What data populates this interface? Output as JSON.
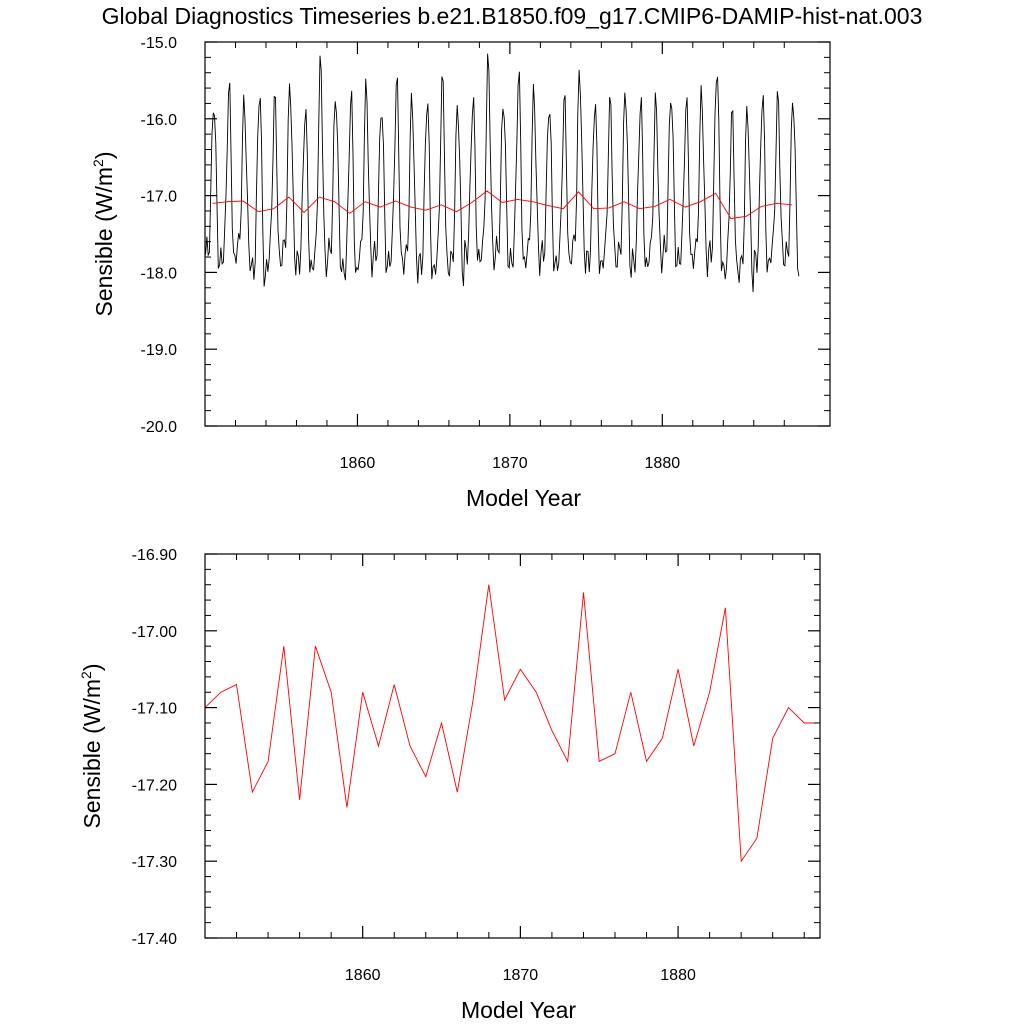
{
  "title": "Global Diagnostics Timeseries b.e21.B1850.f09_g17.CMIP6-DAMIP-hist-nat.003",
  "colors": {
    "monthly": "#000000",
    "annual": "#ff0000",
    "axis": "#000000"
  },
  "chart_data": [
    {
      "type": "line",
      "xlabel": "Model Year",
      "ylabel_main": "Sensible (W/m",
      "ylabel_sup": "2",
      "ylabel_close": ")",
      "xlim": [
        1850,
        1891
      ],
      "ylim": [
        -20.0,
        -15.0
      ],
      "xticks": [
        1860,
        1870,
        1880
      ],
      "xtick_labels": [
        "1860",
        "1870",
        "1880"
      ],
      "yticks": [
        -20.0,
        -19.0,
        -18.0,
        -17.0,
        -16.0,
        -15.0
      ],
      "ytick_labels": [
        "-20.0",
        "-19.0",
        "-18.0",
        "-17.0",
        "-16.0",
        "-15.0"
      ],
      "grid": false,
      "legend": "none",
      "series": [
        {
          "color": "#000000",
          "monthly_annual_means": [
            -17.1,
            -17.08,
            -17.07,
            -17.21,
            -17.17,
            -17.02,
            -17.22,
            -17.02,
            -17.08,
            -17.23,
            -17.08,
            -17.15,
            -17.07,
            -17.15,
            -17.19,
            -17.12,
            -17.21,
            -17.09,
            -16.94,
            -17.09,
            -17.05,
            -17.08,
            -17.13,
            -17.17,
            -16.95,
            -17.17,
            -17.16,
            -17.08,
            -17.17,
            -17.14,
            -17.05,
            -17.15,
            -17.08,
            -16.97,
            -17.3,
            -17.27,
            -17.14,
            -17.1,
            -17.12
          ],
          "monthly_amplitudes": [
            1.05,
            1.15,
            1.0,
            1.25,
            1.1,
            1.15,
            1.05,
            1.35,
            1.1,
            1.2,
            1.15,
            1.05,
            1.2,
            1.1,
            1.15,
            1.25,
            1.1,
            1.05,
            1.3,
            1.05,
            1.25,
            1.1,
            1.05,
            1.1,
            1.2,
            1.1,
            1.05,
            1.15,
            1.1,
            1.05,
            1.1,
            1.05,
            1.1,
            1.3,
            1.05,
            1.1,
            1.15,
            1.05,
            1.1
          ]
        },
        {
          "color": "#ff0000",
          "x": [
            1850.5,
            1851.5,
            1852.5,
            1853.5,
            1854.5,
            1855.5,
            1856.5,
            1857.5,
            1858.5,
            1859.5,
            1860.5,
            1861.5,
            1862.5,
            1863.5,
            1864.5,
            1865.5,
            1866.5,
            1867.5,
            1868.5,
            1869.5,
            1870.5,
            1871.5,
            1872.5,
            1873.5,
            1874.5,
            1875.5,
            1876.5,
            1877.5,
            1878.5,
            1879.5,
            1880.5,
            1881.5,
            1882.5,
            1883.5,
            1884.5,
            1885.5,
            1886.5,
            1887.5,
            1888.5
          ],
          "y": [
            -17.1,
            -17.08,
            -17.07,
            -17.21,
            -17.17,
            -17.02,
            -17.22,
            -17.02,
            -17.08,
            -17.23,
            -17.08,
            -17.15,
            -17.07,
            -17.15,
            -17.19,
            -17.12,
            -17.21,
            -17.09,
            -16.94,
            -17.09,
            -17.05,
            -17.08,
            -17.13,
            -17.17,
            -16.95,
            -17.17,
            -17.16,
            -17.08,
            -17.17,
            -17.14,
            -17.05,
            -17.15,
            -17.08,
            -16.97,
            -17.3,
            -17.27,
            -17.14,
            -17.1,
            -17.12
          ]
        }
      ]
    },
    {
      "type": "line",
      "xlabel": "Model Year",
      "ylabel_main": "Sensible (W/m",
      "ylabel_sup": "2",
      "ylabel_close": ")",
      "xlim": [
        1850,
        1889
      ],
      "ylim": [
        -17.4,
        -16.9
      ],
      "xticks": [
        1860,
        1870,
        1880
      ],
      "xtick_labels": [
        "1860",
        "1870",
        "1880"
      ],
      "yticks": [
        -17.4,
        -17.3,
        -17.2,
        -17.1,
        -17.0,
        -16.9
      ],
      "ytick_labels": [
        "-17.40",
        "-17.30",
        "-17.20",
        "-17.10",
        "-17.00",
        "-16.90"
      ],
      "grid": false,
      "legend": "none",
      "series": [
        {
          "color": "#ff0000",
          "x": [
            1850.0,
            1851.0,
            1852.0,
            1853.0,
            1854.0,
            1855.0,
            1856.0,
            1857.0,
            1858.0,
            1859.0,
            1860.0,
            1861.0,
            1862.0,
            1863.0,
            1864.0,
            1865.0,
            1866.0,
            1867.0,
            1868.0,
            1869.0,
            1870.0,
            1871.0,
            1872.0,
            1873.0,
            1874.0,
            1875.0,
            1876.0,
            1877.0,
            1878.0,
            1879.0,
            1880.0,
            1881.0,
            1882.0,
            1883.0,
            1884.0,
            1885.0,
            1886.0,
            1887.0,
            1888.0,
            1889.0
          ],
          "y": [
            -17.1,
            -17.08,
            -17.07,
            -17.21,
            -17.17,
            -17.02,
            -17.22,
            -17.02,
            -17.08,
            -17.23,
            -17.08,
            -17.15,
            -17.07,
            -17.15,
            -17.19,
            -17.12,
            -17.21,
            -17.09,
            -16.94,
            -17.09,
            -17.05,
            -17.08,
            -17.13,
            -17.17,
            -16.95,
            -17.17,
            -17.16,
            -17.08,
            -17.17,
            -17.14,
            -17.05,
            -17.15,
            -17.08,
            -16.97,
            -17.3,
            -17.27,
            -17.14,
            -17.1,
            -17.12,
            -17.12
          ]
        }
      ]
    }
  ]
}
